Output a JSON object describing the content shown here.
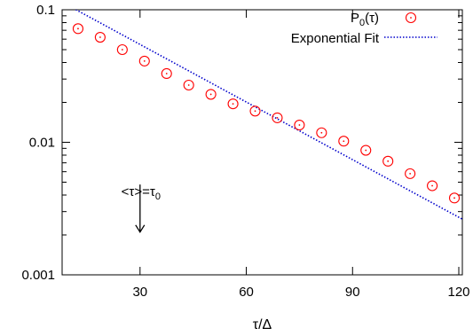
{
  "chart_data": {
    "type": "scatter",
    "xlabel_base": "τ/Δ",
    "ylabel": "",
    "title": "",
    "xlim": [
      8,
      121
    ],
    "ylim": [
      0.001,
      0.1
    ],
    "yscale": "log",
    "grid": false,
    "legend_position": "top-right",
    "x_ticks": [
      30,
      60,
      90,
      120
    ],
    "x_tick_labels": [
      "30",
      "60",
      "90",
      "120"
    ],
    "y_ticks": [
      0.001,
      0.01,
      0.1
    ],
    "y_tick_labels": [
      "0.001",
      "0.01",
      "0.1"
    ],
    "series": [
      {
        "name": "P_0(τ)",
        "legend_label": "P",
        "legend_sub": "0",
        "legend_suffix": "(τ)",
        "style": "circle-dot",
        "color": "#ff0000",
        "x": [
          12.5,
          18.75,
          25,
          31.25,
          37.5,
          43.75,
          50,
          56.25,
          62.5,
          68.75,
          75,
          81.25,
          87.5,
          93.75,
          100,
          106.25,
          112.5,
          118.75
        ],
        "y": [
          0.072,
          0.062,
          0.05,
          0.041,
          0.033,
          0.027,
          0.023,
          0.0195,
          0.0172,
          0.0153,
          0.0135,
          0.0118,
          0.0102,
          0.0087,
          0.0072,
          0.0058,
          0.0047,
          0.0038
        ]
      },
      {
        "name": "Exponential Fit",
        "style": "dotted-line",
        "color": "#0000cc",
        "x": [
          8,
          121
        ],
        "y": [
          0.114,
          0.00263
        ]
      }
    ],
    "annotation": {
      "text_main": "<τ>=τ",
      "text_sub": "0",
      "arrow_x": 30,
      "arrow_y_from": 0.0048,
      "arrow_y_to": 0.0021
    }
  }
}
